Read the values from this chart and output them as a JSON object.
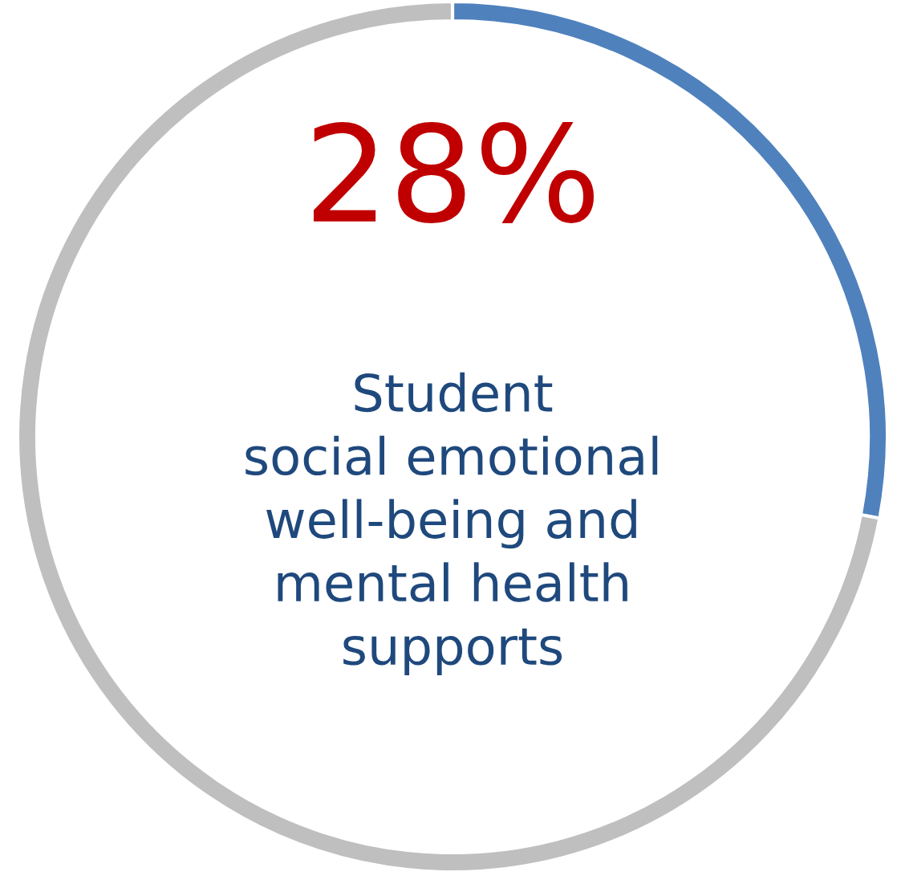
{
  "chart_data": {
    "type": "donut",
    "categories": [
      null,
      null
    ],
    "values": [
      28,
      72
    ],
    "colors": [
      "#4f81bd",
      "#bfbfbf"
    ],
    "value_labels": [
      "28%",
      null
    ],
    "annotations": [
      "Student\nsocial emotional\nwell-being and\nmental health\nsupports"
    ],
    "legend": false
  }
}
